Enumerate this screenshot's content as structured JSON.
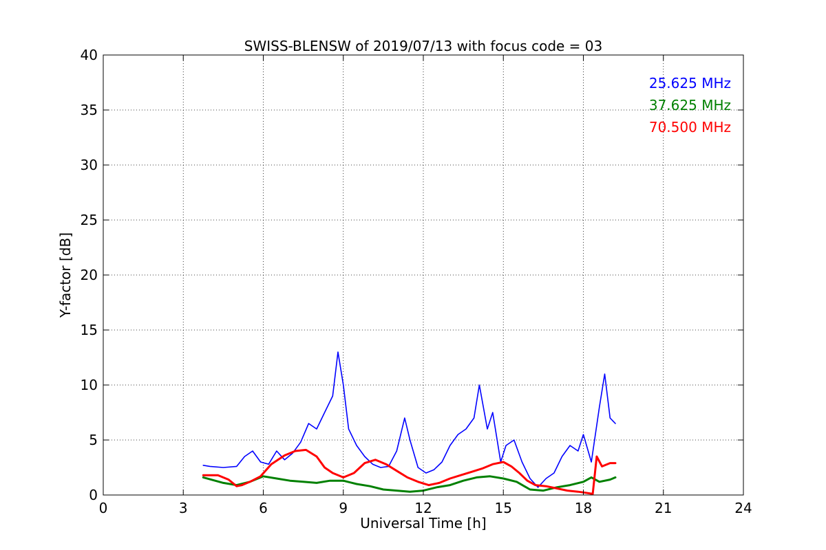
{
  "chart_data": {
    "type": "line",
    "title": "SWISS-BLENSW of 2019/07/13 with focus code = 03",
    "xlabel": "Universal Time [h]",
    "ylabel": "Y-factor [dB]",
    "xlim": [
      0,
      24
    ],
    "ylim": [
      0,
      40
    ],
    "xticks": [
      "0",
      "3",
      "6",
      "9",
      "12",
      "15",
      "18",
      "21",
      "24"
    ],
    "yticks": [
      "0",
      "5",
      "10",
      "15",
      "20",
      "25",
      "30",
      "35",
      "40"
    ],
    "grid": true,
    "legend_position": "top-right",
    "series": [
      {
        "name": "25.625 MHz",
        "color": "#0000ff",
        "x": [
          3.75,
          4.0,
          4.5,
          5.0,
          5.3,
          5.6,
          5.9,
          6.2,
          6.5,
          6.8,
          7.1,
          7.4,
          7.7,
          8.0,
          8.3,
          8.6,
          8.8,
          9.0,
          9.2,
          9.5,
          9.8,
          10.1,
          10.4,
          10.7,
          11.0,
          11.3,
          11.5,
          11.8,
          12.1,
          12.4,
          12.7,
          13.0,
          13.3,
          13.6,
          13.9,
          14.1,
          14.4,
          14.6,
          14.9,
          15.1,
          15.4,
          15.7,
          16.0,
          16.3,
          16.6,
          16.9,
          17.2,
          17.5,
          17.8,
          18.0,
          18.3,
          18.6,
          18.8,
          19.0,
          19.2
        ],
        "y": [
          2.7,
          2.6,
          2.5,
          2.6,
          3.5,
          4.0,
          3.0,
          2.8,
          4.0,
          3.2,
          3.8,
          4.8,
          6.5,
          6.0,
          7.5,
          9.0,
          13.0,
          10.0,
          6.0,
          4.5,
          3.5,
          2.8,
          2.5,
          2.6,
          4.0,
          7.0,
          5.0,
          2.5,
          2.0,
          2.3,
          3.0,
          4.5,
          5.5,
          6.0,
          7.0,
          10.0,
          6.0,
          7.5,
          3.0,
          4.5,
          5.0,
          3.0,
          1.5,
          0.7,
          1.5,
          2.0,
          3.5,
          4.5,
          4.0,
          5.5,
          3.0,
          8.0,
          11.0,
          7.0,
          6.5
        ]
      },
      {
        "name": "37.625 MHz",
        "color": "#008000",
        "x": [
          3.75,
          4.5,
          5.0,
          5.5,
          6.0,
          6.5,
          7.0,
          7.5,
          8.0,
          8.5,
          9.0,
          9.5,
          10.0,
          10.5,
          11.0,
          11.5,
          12.0,
          12.5,
          13.0,
          13.5,
          14.0,
          14.5,
          15.0,
          15.5,
          16.0,
          16.5,
          17.0,
          17.5,
          18.0,
          18.3,
          18.6,
          19.0,
          19.2
        ],
        "y": [
          1.6,
          1.1,
          0.9,
          1.2,
          1.7,
          1.5,
          1.3,
          1.2,
          1.1,
          1.3,
          1.3,
          1.0,
          0.8,
          0.5,
          0.4,
          0.3,
          0.4,
          0.7,
          0.9,
          1.3,
          1.6,
          1.7,
          1.5,
          1.2,
          0.5,
          0.4,
          0.7,
          0.9,
          1.2,
          1.6,
          1.2,
          1.4,
          1.6
        ]
      },
      {
        "name": "70.500 MHz",
        "color": "#ff0000",
        "x": [
          3.75,
          4.3,
          4.7,
          5.0,
          5.2,
          5.5,
          5.9,
          6.3,
          6.8,
          7.2,
          7.6,
          8.0,
          8.3,
          8.6,
          9.0,
          9.4,
          9.8,
          10.2,
          10.6,
          11.0,
          11.4,
          11.8,
          12.2,
          12.6,
          13.0,
          13.4,
          13.8,
          14.2,
          14.6,
          15.0,
          15.3,
          15.6,
          15.9,
          16.2,
          16.6,
          17.0,
          17.4,
          17.8,
          18.1,
          18.35,
          18.5,
          18.7,
          19.0,
          19.2
        ],
        "y": [
          1.8,
          1.8,
          1.4,
          0.8,
          0.9,
          1.2,
          1.7,
          2.8,
          3.6,
          4.0,
          4.1,
          3.5,
          2.5,
          2.0,
          1.6,
          2.0,
          2.9,
          3.2,
          2.8,
          2.2,
          1.6,
          1.2,
          0.9,
          1.1,
          1.5,
          1.8,
          2.1,
          2.4,
          2.8,
          3.0,
          2.6,
          2.0,
          1.3,
          0.9,
          0.8,
          0.6,
          0.4,
          0.3,
          0.2,
          0.1,
          3.5,
          2.6,
          2.9,
          2.9
        ]
      }
    ]
  }
}
